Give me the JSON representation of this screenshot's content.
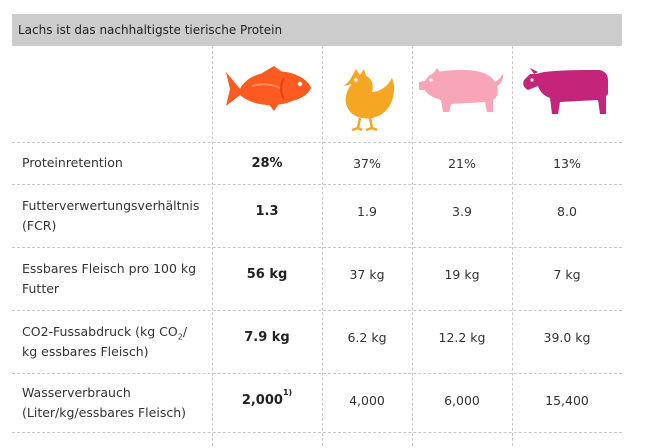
{
  "title": "Lachs ist das nachhaltigste tierische Protein",
  "icons": [
    {
      "name": "salmon-icon",
      "color": "#ff5a1f"
    },
    {
      "name": "chicken-icon",
      "color": "#f5a623"
    },
    {
      "name": "pig-icon",
      "color": "#f8a5b7"
    },
    {
      "name": "cow-icon",
      "color": "#c4247a"
    }
  ],
  "rows": [
    {
      "label": "Proteinretention",
      "values": [
        "28%",
        "37%",
        "21%",
        "13%"
      ]
    },
    {
      "label_line1": "Futterverwertungsverhältnis",
      "label_line2": "(FCR)",
      "values": [
        "1.3",
        "1.9",
        "3.9",
        "8.0"
      ]
    },
    {
      "label_line1": "Essbares Fleisch pro 100 kg",
      "label_line2": "Futter",
      "values": [
        "56 kg",
        "37 kg",
        "19 kg",
        "7 kg"
      ]
    },
    {
      "label_line1_a": "CO2-Fussabdruck (kg CO",
      "label_line1_sub": "2",
      "label_line1_b": "/",
      "label_line2": "kg essbares Fleisch)",
      "values": [
        "7.9 kg",
        "6.2 kg",
        "12.2 kg",
        "39.0 kg"
      ]
    },
    {
      "label_line1": "Wasserverbrauch",
      "label_line2": "(Liter/kg/essbares Fleisch)",
      "values": [
        "2,000",
        "4,000",
        "6,000",
        "15,400"
      ],
      "first_value_footnote": "1)"
    }
  ]
}
